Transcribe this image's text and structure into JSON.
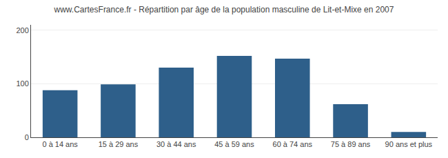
{
  "chart_data": {
    "type": "bar",
    "title": "www.CartesFrance.fr - Répartition par âge de la population masculine de Lit-et-Mixe en 2007",
    "categories": [
      "0 à 14 ans",
      "15 à 29 ans",
      "30 à 44 ans",
      "45 à 59 ans",
      "60 à 74 ans",
      "75 à 89 ans",
      "90 ans et plus"
    ],
    "values": [
      88,
      99,
      130,
      152,
      147,
      62,
      10
    ],
    "color": "#2E5F8A",
    "ylim": [
      0,
      210
    ],
    "yticks": [
      0,
      100,
      200
    ],
    "grid": true
  }
}
